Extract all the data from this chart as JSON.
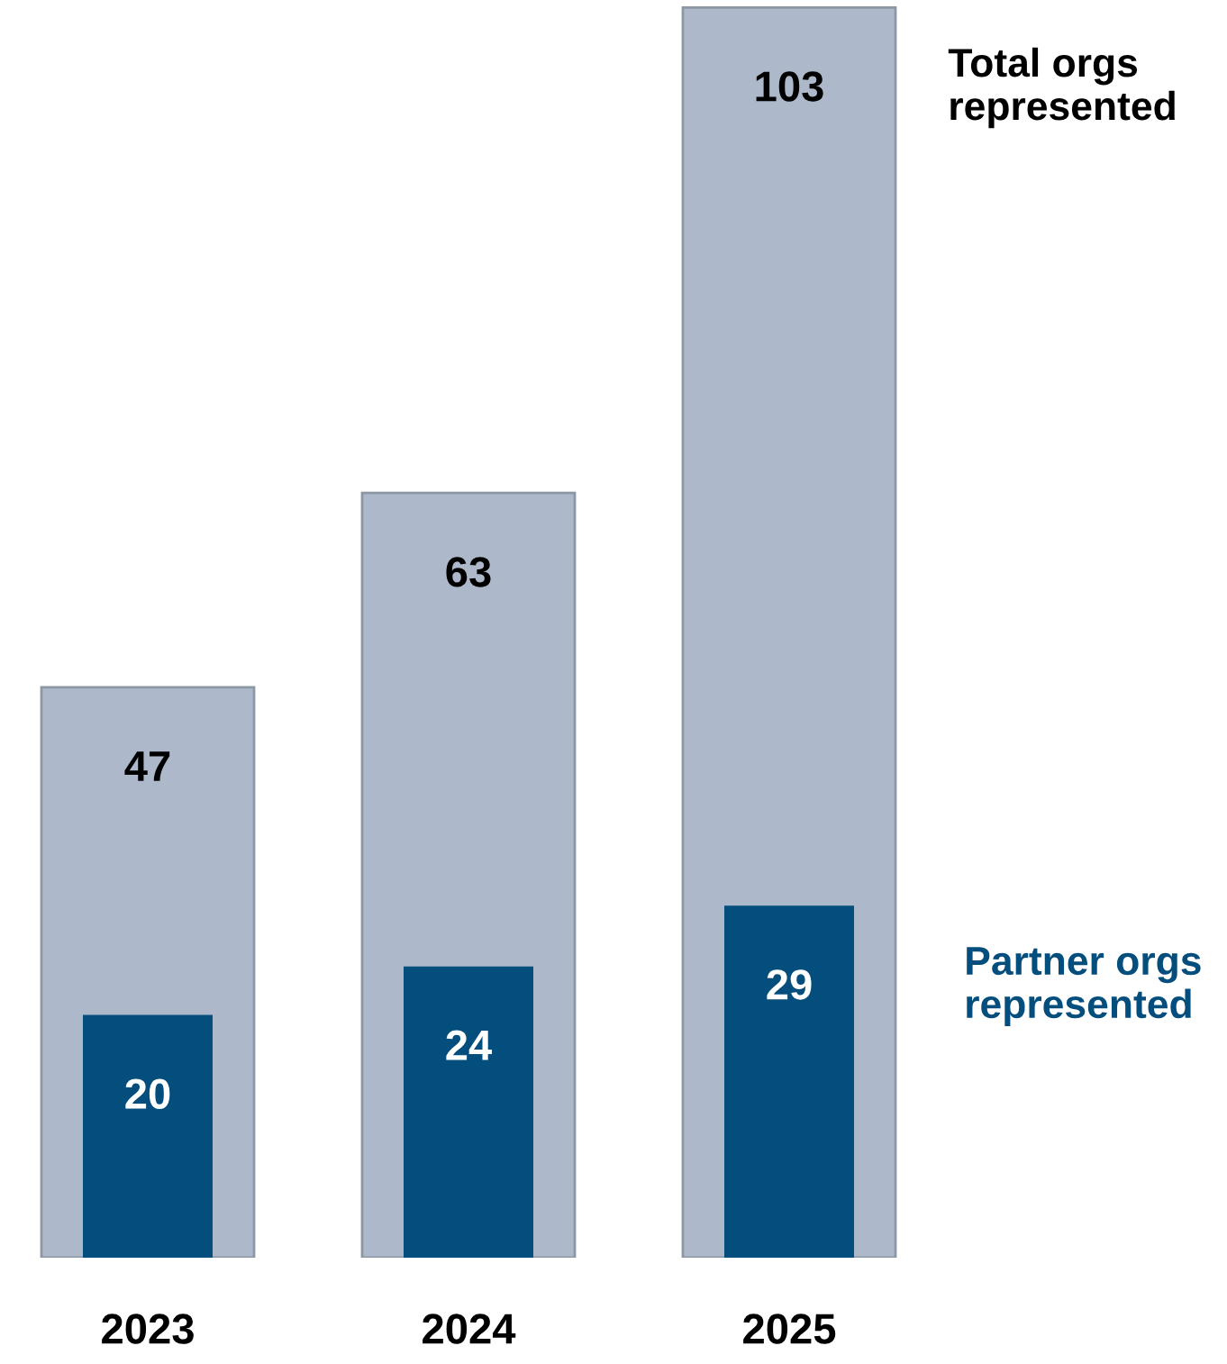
{
  "chart_data": {
    "type": "bar",
    "categories": [
      "2023",
      "2024",
      "2025"
    ],
    "series": [
      {
        "name": "Total orgs represented",
        "color": "#adb9ca",
        "values": [
          47,
          63,
          103
        ]
      },
      {
        "name": "Partner orgs represented",
        "color": "#044e7e",
        "values": [
          20,
          24,
          29
        ]
      }
    ],
    "data_labels": true,
    "legend": false,
    "grid": false
  }
}
